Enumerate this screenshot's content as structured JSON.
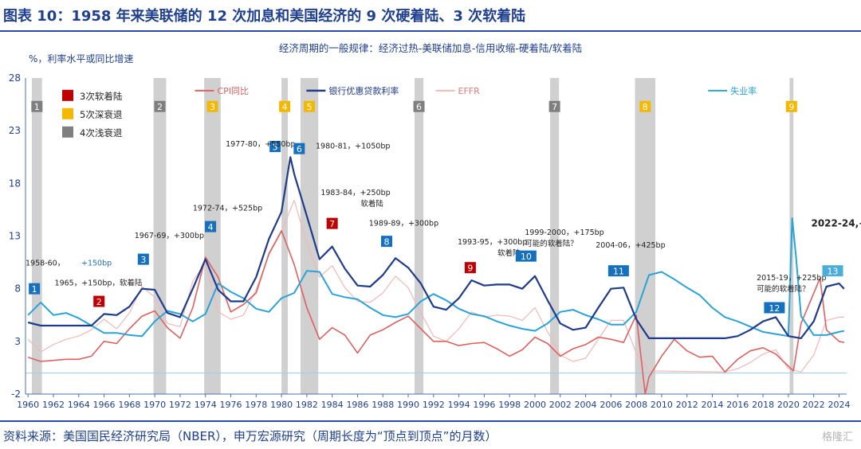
{
  "title": "图表 10：1958 年来美联储的 12 次加息和美国经济的 9 次硬着陆、3 次软着陆",
  "source": "资料来源：美国国民经济研究局（NBER），申万宏源研究（周期长度为“顶点到顶点”的月数）",
  "watermark": "格隆汇",
  "chart_data": {
    "type": "line",
    "subtitle": "经济周期的一般规律：经济过热-美联储加息-信用收缩-硬着陆/软着陆",
    "ylabel": "%，利率水平或同比增速",
    "xlim": [
      1959.8,
      2024.6
    ],
    "ylim": [
      -2,
      28
    ],
    "yticks": [
      -2,
      3,
      8,
      13,
      18,
      23,
      28
    ],
    "xticks": [
      "1960",
      "1962",
      "1964",
      "1966",
      "1968",
      "1970",
      "1972",
      "1974",
      "1976",
      "1978",
      "1980",
      "1982",
      "1984",
      "1986",
      "1988",
      "1990",
      "1992",
      "1994",
      "1996",
      "1998",
      "2000",
      "2002",
      "2004",
      "2006",
      "2008",
      "2010",
      "2012",
      "2014",
      "2016",
      "2018",
      "2020",
      "2022",
      "2024"
    ],
    "grid": false,
    "legend_placement": "top",
    "colors": {
      "cpi": "#e06060",
      "prime": "#1f3b8c",
      "effr": "#f3b8b8",
      "unemp": "#2aa3d8",
      "recession": "#c8c8c8",
      "shallow": "#7f7f7f",
      "deep": "#f5b800",
      "soft": "#c00000",
      "hike": "#1570c0",
      "hike_light": "#4aaed8"
    },
    "series": [
      {
        "name": "CPI同比",
        "color": "#e06060",
        "x": [
          1960,
          1961,
          1962,
          1963,
          1964,
          1965,
          1966,
          1967,
          1968,
          1969,
          1970,
          1971,
          1972,
          1973,
          1974,
          1975,
          1976,
          1977,
          1978,
          1979,
          1980,
          1981,
          1982,
          1983,
          1984,
          1985,
          1986,
          1987,
          1988,
          1989,
          1990,
          1991,
          1992,
          1993,
          1994,
          1995,
          1996,
          1997,
          1998,
          1999,
          2000,
          2001,
          2002,
          2003,
          2004,
          2005,
          2006,
          2007,
          2008,
          2008.7,
          2009,
          2010,
          2011,
          2012,
          2013,
          2014,
          2015,
          2016,
          2017,
          2018,
          2019,
          2020.4,
          2021,
          2022.5,
          2023,
          2024,
          2024.4
        ],
        "values": [
          1.5,
          1.1,
          1.2,
          1.3,
          1.3,
          1.6,
          3.0,
          2.8,
          4.2,
          5.4,
          5.9,
          4.3,
          3.3,
          6.2,
          11.0,
          9.1,
          5.8,
          6.5,
          7.6,
          11.3,
          13.5,
          10.3,
          6.2,
          3.2,
          4.3,
          3.6,
          1.9,
          3.6,
          4.1,
          4.8,
          5.4,
          4.2,
          3.0,
          3.0,
          2.6,
          2.8,
          2.9,
          2.3,
          1.6,
          2.2,
          3.4,
          2.8,
          1.6,
          2.3,
          2.7,
          3.4,
          3.2,
          2.9,
          5.5,
          -2.0,
          -0.4,
          1.6,
          3.2,
          2.1,
          1.5,
          1.6,
          0.1,
          1.3,
          2.1,
          2.4,
          1.8,
          0.2,
          4.7,
          9.0,
          4.1,
          3.0,
          2.9
        ]
      },
      {
        "name": "银行优惠贷款利率",
        "color": "#1f3b8c",
        "x": [
          1960,
          1961,
          1962,
          1963,
          1964,
          1965,
          1966,
          1967,
          1968,
          1969,
          1970,
          1971,
          1972,
          1973,
          1974,
          1975,
          1976,
          1977,
          1978,
          1979,
          1980,
          1980.7,
          1981,
          1982,
          1983,
          1984,
          1985,
          1986,
          1987,
          1988,
          1989,
          1990,
          1991,
          1992,
          1993,
          1994,
          1995,
          1996,
          1997,
          1998,
          1999,
          2000,
          2001,
          2002,
          2003,
          2004,
          2005,
          2006,
          2007,
          2008,
          2009,
          2015,
          2016,
          2017,
          2018,
          2019,
          2020,
          2021,
          2022,
          2023,
          2024,
          2024.4
        ],
        "values": [
          4.8,
          4.5,
          4.5,
          4.5,
          4.5,
          4.5,
          5.6,
          5.5,
          6.3,
          8.0,
          7.9,
          5.7,
          5.3,
          8.0,
          10.8,
          7.9,
          6.8,
          6.8,
          9.1,
          12.7,
          15.3,
          20.5,
          18.9,
          14.9,
          10.8,
          12.0,
          9.9,
          8.3,
          8.2,
          9.3,
          10.9,
          10.0,
          8.5,
          6.3,
          6.0,
          7.1,
          8.8,
          8.3,
          8.4,
          8.4,
          8.0,
          9.2,
          6.9,
          4.7,
          4.1,
          4.3,
          6.2,
          8.0,
          8.1,
          5.1,
          3.3,
          3.3,
          3.5,
          4.1,
          4.9,
          5.3,
          3.5,
          3.3,
          4.9,
          8.2,
          8.5,
          8.0
        ]
      },
      {
        "name": "EFFR",
        "color": "#f3b8b8",
        "x": [
          1960,
          1961,
          1962,
          1963,
          1964,
          1965,
          1966,
          1967,
          1968,
          1969,
          1970,
          1971,
          1972,
          1973,
          1974,
          1975,
          1976,
          1977,
          1978,
          1979,
          1980,
          1981,
          1982,
          1983,
          1984,
          1985,
          1986,
          1987,
          1988,
          1989,
          1990,
          1991,
          1992,
          1993,
          1994,
          1995,
          1996,
          1997,
          1998,
          1999,
          2000,
          2001,
          2002,
          2003,
          2004,
          2005,
          2006,
          2007,
          2008,
          2009,
          2015,
          2016,
          2017,
          2018,
          2019,
          2020,
          2021,
          2022,
          2023,
          2024,
          2024.4
        ],
        "values": [
          3.2,
          2.0,
          2.7,
          3.2,
          3.5,
          4.1,
          5.1,
          4.2,
          5.7,
          8.2,
          7.2,
          4.7,
          4.4,
          8.7,
          10.5,
          5.8,
          5.1,
          5.5,
          7.9,
          11.2,
          13.4,
          16.4,
          12.3,
          9.1,
          10.2,
          8.1,
          6.8,
          6.7,
          7.6,
          9.2,
          8.1,
          5.7,
          3.5,
          3.0,
          4.2,
          5.8,
          5.3,
          5.5,
          5.4,
          5.0,
          6.2,
          3.9,
          1.7,
          1.1,
          1.4,
          3.2,
          5.0,
          5.0,
          1.9,
          0.2,
          0.1,
          0.4,
          1.0,
          1.8,
          2.2,
          0.4,
          0.1,
          1.7,
          5.0,
          5.3,
          5.3
        ]
      },
      {
        "name": "失业率",
        "color": "#2aa3d8",
        "x": [
          1960,
          1961,
          1962,
          1963,
          1964,
          1965,
          1966,
          1967,
          1968,
          1969,
          1970,
          1971,
          1972,
          1973,
          1974,
          1975,
          1976,
          1977,
          1978,
          1979,
          1980,
          1981,
          1982,
          1983,
          1984,
          1985,
          1986,
          1987,
          1988,
          1989,
          1990,
          1991,
          1992,
          1993,
          1994,
          1995,
          1996,
          1997,
          1998,
          1999,
          2000,
          2001,
          2002,
          2003,
          2004,
          2005,
          2006,
          2007,
          2008,
          2009,
          2010,
          2011,
          2012,
          2013,
          2014,
          2015,
          2016,
          2017,
          2018,
          2019,
          2020,
          2020.3,
          2020.6,
          2021,
          2022,
          2023,
          2024,
          2024.4
        ],
        "values": [
          5.5,
          6.7,
          5.5,
          5.7,
          5.2,
          4.5,
          3.8,
          3.8,
          3.6,
          3.5,
          4.9,
          5.9,
          5.6,
          4.9,
          5.6,
          8.5,
          7.7,
          7.1,
          6.1,
          5.8,
          7.1,
          7.6,
          9.7,
          9.6,
          7.5,
          7.2,
          7.0,
          6.2,
          5.5,
          5.3,
          5.6,
          6.8,
          7.5,
          6.9,
          6.1,
          5.6,
          5.4,
          4.9,
          4.5,
          4.2,
          4.0,
          4.7,
          5.8,
          6.0,
          5.5,
          5.1,
          4.6,
          4.6,
          5.8,
          9.3,
          9.6,
          8.9,
          8.1,
          7.4,
          6.2,
          5.3,
          4.9,
          4.4,
          3.9,
          3.7,
          3.5,
          14.7,
          11.1,
          5.4,
          3.6,
          3.6,
          3.9,
          4.0
        ]
      }
    ],
    "recessions": [
      {
        "label": "1",
        "start": 1960.3,
        "end": 1961.1,
        "kind": "shallow"
      },
      {
        "label": "2",
        "start": 1969.9,
        "end": 1970.9,
        "kind": "shallow"
      },
      {
        "label": "3",
        "start": 1973.9,
        "end": 1975.2,
        "kind": "deep"
      },
      {
        "label": "4",
        "start": 1980.0,
        "end": 1980.5,
        "kind": "deep"
      },
      {
        "label": "5",
        "start": 1981.5,
        "end": 1982.9,
        "kind": "deep"
      },
      {
        "label": "6",
        "start": 1990.5,
        "end": 1991.2,
        "kind": "shallow"
      },
      {
        "label": "7",
        "start": 2001.2,
        "end": 2001.9,
        "kind": "shallow"
      },
      {
        "label": "8",
        "start": 2007.9,
        "end": 2009.5,
        "kind": "deep"
      },
      {
        "label": "9",
        "start": 2020.1,
        "end": 2020.4,
        "kind": "deep"
      }
    ],
    "recession_legend": [
      {
        "label": "4次浅衰退",
        "kind": "shallow"
      },
      {
        "label": "5次深衰退",
        "kind": "deep"
      },
      {
        "label": "3次软着陆",
        "kind": "soft"
      }
    ],
    "hikes": [
      {
        "num": "1",
        "x": 1960.5,
        "y": 8.0,
        "text": "1958-60，",
        "text2": "+150bp",
        "tx": 1959.8,
        "ty": 10.2,
        "kind": "hike"
      },
      {
        "num": "2",
        "x": 1965.6,
        "y": 6.8,
        "text": "1965，+150bp，软着陆",
        "tx": 1962.1,
        "ty": 8.3,
        "kind": "soft"
      },
      {
        "num": "3",
        "x": 1969.1,
        "y": 10.8,
        "text": "1967-69，+300bp",
        "tx": 1968.4,
        "ty": 12.8,
        "kind": "hike"
      },
      {
        "num": "4",
        "x": 1974.4,
        "y": 13.9,
        "text": "1972-74，+525bp",
        "tx": 1973.0,
        "ty": 15.4,
        "kind": "hike"
      },
      {
        "num": "5",
        "x": 1979.5,
        "y": 21.5,
        "text": "1977-80，+550bp",
        "tx": 1975.6,
        "ty": 21.5,
        "kind": "hike"
      },
      {
        "num": "6",
        "x": 1981.4,
        "y": 21.3,
        "text": "1980-81，+1050bp",
        "tx": 1982.7,
        "ty": 21.3,
        "kind": "hike"
      },
      {
        "num": "7",
        "x": 1984.0,
        "y": 14.2,
        "text": "1983-84，+250bp",
        "text2": "软着陆",
        "tx": 1983.1,
        "ty": 16.9,
        "kind": "soft"
      },
      {
        "num": "8",
        "x": 1988.3,
        "y": 12.5,
        "text": "1989-89，+300bp",
        "tx": 1986.9,
        "ty": 14.0,
        "kind": "hike"
      },
      {
        "num": "9",
        "x": 1994.9,
        "y": 10.0,
        "text": "1993-95，+300bp",
        "text2": "软着陆",
        "tx": 1993.9,
        "ty": 12.2,
        "kind": "soft"
      },
      {
        "num": "10",
        "x": 1999.3,
        "y": 11.1,
        "text": "1999-2000，+175bp",
        "text2": "可能的软着陆？",
        "tx": 1999.2,
        "ty": 13.1,
        "kind": "hike"
      },
      {
        "num": "11",
        "x": 2006.6,
        "y": 9.7,
        "text": "2004-06，+425bp",
        "tx": 2004.8,
        "ty": 11.9,
        "kind": "hike"
      },
      {
        "num": "12",
        "x": 2018.9,
        "y": 6.2,
        "text": "2015-19，+225bp",
        "text2": "可能的软着陆？",
        "tx": 2017.5,
        "ty": 8.8,
        "kind": "hike"
      },
      {
        "num": "13",
        "x": 2023.5,
        "y": 9.7,
        "text": "2022-24,+525bp",
        "tx": 2021.8,
        "ty": 13.9,
        "kind": "hike_light"
      }
    ]
  }
}
